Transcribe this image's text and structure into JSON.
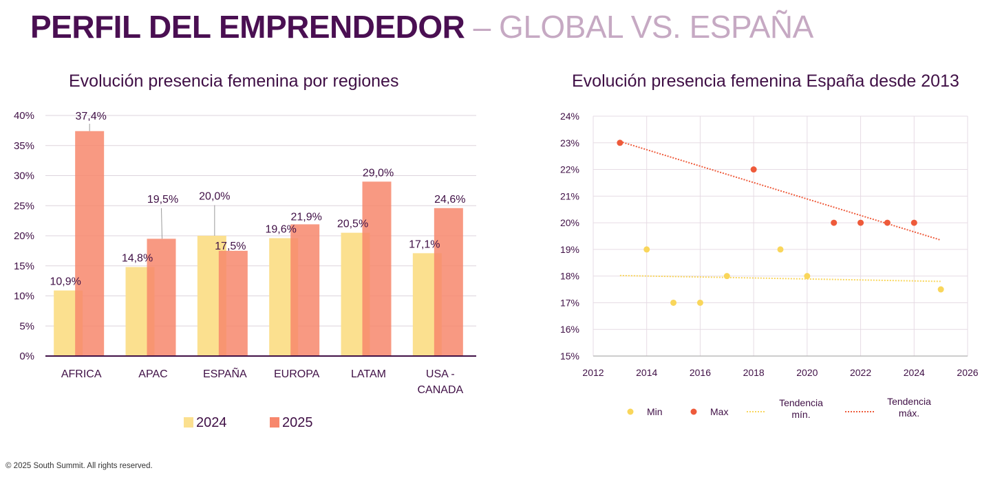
{
  "page": {
    "title_bold": "PERFIL DEL EMPRENDEDOR",
    "title_rest": " – GLOBAL VS. ESPAÑA",
    "footer": "© 2025 South Summit.  All rights reserved."
  },
  "colors": {
    "title": "#4a0f52",
    "subtitle": "#c6a9c3",
    "y2024": "#fbe08f",
    "y2025": "#f7876c",
    "min": "#f9d65b",
    "max": "#ee5a3a"
  },
  "chart_data": [
    {
      "type": "bar",
      "title": "Evolución presencia femenina por regiones",
      "categories": [
        "AFRICA",
        "APAC",
        "ESPAÑA",
        "EUROPA",
        "LATAM",
        "USA - CANADA"
      ],
      "category_lines": [
        [
          "AFRICA"
        ],
        [
          "APAC"
        ],
        [
          "ESPAÑA"
        ],
        [
          "EUROPA"
        ],
        [
          "LATAM"
        ],
        [
          "USA -",
          "CANADA"
        ]
      ],
      "series": [
        {
          "name": "2024",
          "values": [
            10.9,
            14.8,
            20.0,
            19.6,
            20.5,
            17.1
          ],
          "labels": [
            "10,9%",
            "14,8%",
            "20,0%",
            "19,6%",
            "20,5%",
            "17,1%"
          ]
        },
        {
          "name": "2025",
          "values": [
            37.4,
            19.5,
            17.5,
            21.9,
            29.0,
            24.6
          ],
          "labels": [
            "37,4%",
            "19,5%",
            "17,5%",
            "21,9%",
            "29,0%",
            "24,6%"
          ]
        }
      ],
      "ylim": [
        0,
        40
      ],
      "yticks": [
        "0%",
        "5%",
        "10%",
        "15%",
        "20%",
        "25%",
        "30%",
        "35%",
        "40%"
      ],
      "grid": true,
      "legend": "bottom"
    },
    {
      "type": "scatter",
      "title": "Evolución presencia femenina España desde 2013",
      "series": [
        {
          "name": "Min",
          "x": [
            2014,
            2015,
            2016,
            2017,
            2019,
            2020,
            2025
          ],
          "y": [
            19,
            17,
            17,
            18,
            19,
            18,
            17.5
          ]
        },
        {
          "name": "Max",
          "x": [
            2013,
            2018,
            2021,
            2022,
            2023,
            2024
          ],
          "y": [
            23,
            22,
            20,
            20,
            20,
            20
          ]
        }
      ],
      "trendlines": [
        {
          "name": "Tendencia mín.",
          "lines": [
            "Tendencia",
            "mín."
          ],
          "x": [
            2013,
            2025
          ],
          "y": [
            18.02,
            17.8
          ]
        },
        {
          "name": "Tendencia máx.",
          "lines": [
            "Tendencia",
            "máx."
          ],
          "x": [
            2013,
            2025
          ],
          "y": [
            23.05,
            19.35
          ]
        }
      ],
      "xlim": [
        2012,
        2026
      ],
      "ylim": [
        15,
        24
      ],
      "xticks": [
        "2012",
        "2014",
        "2016",
        "2018",
        "2020",
        "2022",
        "2024",
        "2026"
      ],
      "yticks": [
        "15%",
        "16%",
        "17%",
        "18%",
        "19%",
        "20%",
        "21%",
        "22%",
        "23%",
        "24%"
      ],
      "grid": true,
      "legend": "bottom"
    }
  ]
}
